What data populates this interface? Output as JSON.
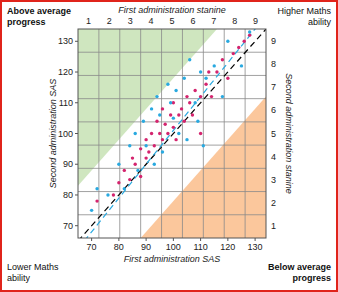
{
  "chart_data": {
    "type": "scatter",
    "x_label": "First administration SAS",
    "y_label": "Second administration SAS",
    "x2_label": "First administration stanine",
    "y2_label": "Second administration stanine",
    "corner_labels": {
      "top_left": [
        "Above average",
        "progress"
      ],
      "top_right": [
        "Higher Maths",
        "ability"
      ],
      "bottom_left": [
        "Lower Maths",
        "ability"
      ],
      "bottom_right": [
        "Below average",
        "progress"
      ]
    },
    "xlim": [
      65,
      134
    ],
    "ylim": [
      66,
      134
    ],
    "xticks": [
      70,
      80,
      90,
      100,
      110,
      120,
      130
    ],
    "yticks": [
      70,
      80,
      90,
      100,
      110,
      120,
      130
    ],
    "x2lim": [
      0.5,
      9.5
    ],
    "x2ticks": [
      1,
      2,
      3,
      4,
      5,
      6,
      7,
      8,
      9
    ],
    "y2lim": [
      0.5,
      9.5
    ],
    "y2ticks": [
      1,
      2,
      3,
      4,
      5,
      6,
      7,
      8,
      9
    ],
    "grid": true,
    "bands": [
      {
        "offset": 18,
        "color": "#cfe6bf"
      },
      {
        "offset": -22,
        "color": "#fbc79c"
      }
    ],
    "reference_lines": [
      {
        "slope": 1,
        "intercept": 0,
        "color": "#000000",
        "line_style": "dashed"
      },
      {
        "slope": 1.1,
        "intercept": -9,
        "color": "#29a9e0",
        "line_style": "dashed"
      }
    ],
    "series": [
      {
        "color": "#d4246e",
        "marker": "circle",
        "x": [
          72,
          78,
          80,
          82,
          84,
          85,
          86,
          88,
          88,
          90,
          90,
          91,
          92,
          93,
          94,
          95,
          96,
          96,
          97,
          98,
          99,
          100,
          100,
          101,
          102,
          103,
          104,
          105,
          106,
          107,
          108,
          110,
          110,
          112,
          113,
          114,
          116,
          118,
          120,
          122,
          124,
          126,
          128
        ],
        "values": [
          78,
          80,
          84,
          88,
          85,
          92,
          90,
          95,
          86,
          92,
          98,
          94,
          100,
          96,
          104,
          100,
          98,
          108,
          103,
          100,
          106,
          102,
          110,
          98,
          106,
          108,
          104,
          112,
          110,
          106,
          114,
          112,
          100,
          116,
          120,
          112,
          120,
          124,
          118,
          126,
          128,
          130,
          132
        ]
      },
      {
        "color": "#29a9e0",
        "marker": "circle",
        "x": [
          70,
          72,
          76,
          80,
          82,
          84,
          86,
          87,
          89,
          90,
          92,
          93,
          94,
          95,
          96,
          98,
          99,
          100,
          101,
          102,
          104,
          105,
          106,
          108,
          109,
          110,
          111,
          112,
          115,
          118,
          120,
          125,
          128
        ],
        "values": [
          75,
          82,
          80,
          90,
          82,
          96,
          100,
          88,
          104,
          96,
          108,
          90,
          112,
          106,
          94,
          116,
          110,
          105,
          114,
          100,
          118,
          98,
          124,
          110,
          104,
          120,
          96,
          118,
          122,
          112,
          130,
          122,
          133
        ]
      }
    ]
  }
}
